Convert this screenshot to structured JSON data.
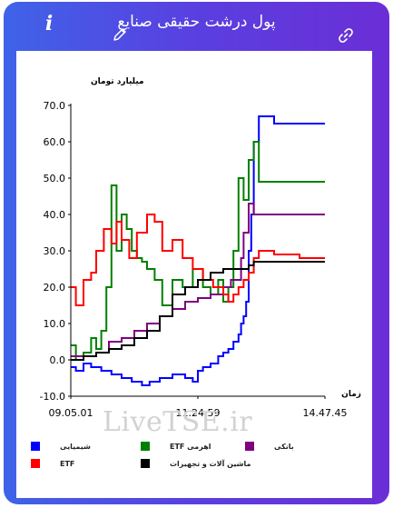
{
  "header": {
    "title": "پول درشت حقیقی صنایع",
    "info_icon_char": "i"
  },
  "watermark": "LiveTSE.ir",
  "chart_data": {
    "type": "line",
    "ylabel": "میلیارد تومان",
    "xlabel": "زمان",
    "ylim": [
      -10,
      70
    ],
    "yticks": [
      "-10.0",
      "0.0",
      "10.0",
      "20.0",
      "30.0",
      "40.0",
      "50.0",
      "60.0",
      "70.0"
    ],
    "xticks": [
      "09.05.01",
      "11.24.59",
      "14.47.45"
    ],
    "series": [
      {
        "name": "شیمیایی",
        "color": "#0000ff",
        "x": [
          0,
          0.02,
          0.05,
          0.08,
          0.12,
          0.16,
          0.2,
          0.24,
          0.28,
          0.31,
          0.35,
          0.4,
          0.45,
          0.48,
          0.5,
          0.52,
          0.55,
          0.58,
          0.6,
          0.62,
          0.64,
          0.66,
          0.67,
          0.68,
          0.69,
          0.7,
          0.7,
          0.71,
          0.72,
          0.74,
          0.8,
          0.9,
          1.0
        ],
        "y": [
          -2,
          -3,
          -1,
          -2,
          -3,
          -4,
          -5,
          -6,
          -7,
          -6,
          -5,
          -4,
          -5,
          -6,
          -3,
          -2,
          -1,
          1,
          2,
          3,
          5,
          7,
          10,
          12,
          16,
          20,
          30,
          40,
          60,
          67,
          65,
          65,
          65
        ]
      },
      {
        "name": "ETF اهرمی",
        "color": "#008000",
        "x": [
          0,
          0.02,
          0.05,
          0.08,
          0.1,
          0.12,
          0.14,
          0.16,
          0.18,
          0.2,
          0.22,
          0.24,
          0.26,
          0.28,
          0.3,
          0.33,
          0.36,
          0.4,
          0.44,
          0.48,
          0.52,
          0.55,
          0.58,
          0.6,
          0.62,
          0.64,
          0.66,
          0.68,
          0.7,
          0.72,
          0.74,
          0.8,
          0.9,
          1.0
        ],
        "y": [
          4,
          0,
          2,
          6,
          3,
          8,
          20,
          48,
          30,
          40,
          36,
          30,
          28,
          27,
          25,
          22,
          15,
          22,
          20,
          25,
          20,
          18,
          22,
          16,
          20,
          30,
          50,
          44,
          55,
          60,
          49,
          49,
          49,
          49
        ]
      },
      {
        "name": "بانکی",
        "color": "#800080",
        "x": [
          0,
          0.05,
          0.1,
          0.15,
          0.2,
          0.25,
          0.3,
          0.35,
          0.4,
          0.45,
          0.5,
          0.55,
          0.6,
          0.63,
          0.65,
          0.67,
          0.68,
          0.7,
          0.72,
          0.74,
          0.8,
          0.9,
          1.0
        ],
        "y": [
          1,
          1,
          2,
          5,
          6,
          8,
          10,
          12,
          14,
          16,
          17,
          18,
          20,
          22,
          22,
          28,
          35,
          43,
          40,
          40,
          40,
          40,
          40
        ]
      },
      {
        "name": "ETF",
        "color": "#ff0000",
        "x": [
          0,
          0.02,
          0.05,
          0.08,
          0.1,
          0.13,
          0.16,
          0.18,
          0.2,
          0.23,
          0.26,
          0.3,
          0.33,
          0.36,
          0.4,
          0.44,
          0.48,
          0.52,
          0.56,
          0.6,
          0.62,
          0.64,
          0.66,
          0.68,
          0.7,
          0.72,
          0.74,
          0.8,
          0.9,
          1.0
        ],
        "y": [
          20,
          15,
          22,
          24,
          30,
          36,
          32,
          38,
          33,
          28,
          35,
          40,
          38,
          30,
          33,
          28,
          25,
          22,
          20,
          18,
          16,
          18,
          20,
          22,
          24,
          28,
          30,
          29,
          28,
          28
        ]
      },
      {
        "name": "ماشین آلات و تجهیزات",
        "color": "#000000",
        "x": [
          0,
          0.05,
          0.1,
          0.15,
          0.2,
          0.25,
          0.3,
          0.35,
          0.4,
          0.45,
          0.5,
          0.55,
          0.6,
          0.65,
          0.7,
          0.72,
          0.74,
          0.8,
          0.9,
          1.0
        ],
        "y": [
          0,
          1,
          2,
          3,
          4,
          6,
          8,
          12,
          18,
          20,
          22,
          24,
          25,
          25,
          26,
          27,
          27,
          27,
          27,
          27
        ]
      }
    ]
  }
}
